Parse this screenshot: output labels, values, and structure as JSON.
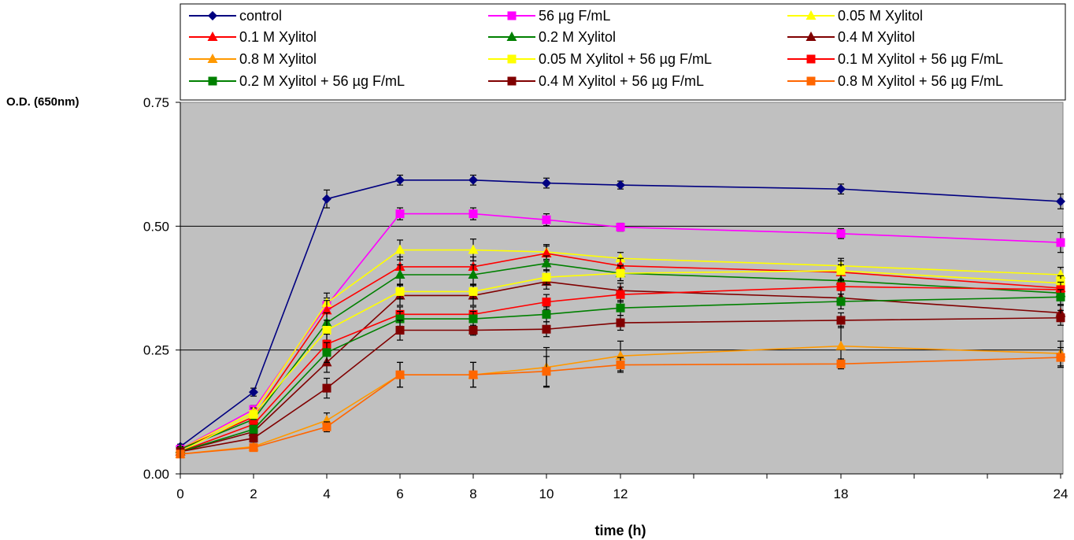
{
  "chart_data": {
    "type": "line",
    "xlabel": "time (h)",
    "ylabel": "O.D. (650nm)",
    "xlim": [
      0,
      24
    ],
    "ylim": [
      0,
      0.75
    ],
    "x_ticks": [
      0,
      2,
      4,
      6,
      8,
      10,
      12,
      18,
      24
    ],
    "x_minor_ticks": [
      14,
      16,
      20,
      22
    ],
    "y_ticks": [
      "0.00",
      "0.25",
      "0.50",
      "0.75"
    ],
    "y_tick_values": [
      0,
      0.25,
      0.5,
      0.75
    ],
    "grid": "horizontal",
    "legend_placement": "top",
    "plot_background": "#c0c0c0",
    "x": [
      0,
      2,
      4,
      6,
      8,
      10,
      12,
      18,
      24
    ],
    "series": [
      {
        "name": "control",
        "color": "#000080",
        "marker": "diamond",
        "values": [
          0.055,
          0.165,
          0.555,
          0.593,
          0.593,
          0.587,
          0.583,
          0.575,
          0.55
        ],
        "errors": [
          0.005,
          0.008,
          0.018,
          0.01,
          0.01,
          0.01,
          0.008,
          0.01,
          0.015
        ]
      },
      {
        "name": "56 µg F/mL",
        "color": "#ff00ff",
        "marker": "square",
        "values": [
          0.05,
          0.13,
          0.34,
          0.525,
          0.525,
          0.513,
          0.498,
          0.485,
          0.467
        ],
        "errors": [
          0.005,
          0.008,
          0.015,
          0.012,
          0.012,
          0.012,
          0.008,
          0.01,
          0.02
        ]
      },
      {
        "name": "0.05 M Xylitol",
        "color": "#ffff00",
        "marker": "triangle",
        "values": [
          0.05,
          0.125,
          0.345,
          0.452,
          0.452,
          0.448,
          0.435,
          0.42,
          0.402
        ],
        "errors": [
          0.005,
          0.008,
          0.02,
          0.02,
          0.022,
          0.015,
          0.012,
          0.015,
          0.015
        ]
      },
      {
        "name": "0.1 M Xylitol",
        "color": "#ff0000",
        "marker": "triangle",
        "values": [
          0.05,
          0.115,
          0.33,
          0.418,
          0.418,
          0.445,
          0.42,
          0.407,
          0.375
        ],
        "errors": [
          0.005,
          0.008,
          0.02,
          0.02,
          0.02,
          0.015,
          0.015,
          0.015,
          0.015
        ]
      },
      {
        "name": "0.2 M Xylitol",
        "color": "#008000",
        "marker": "triangle",
        "values": [
          0.05,
          0.11,
          0.305,
          0.402,
          0.402,
          0.425,
          0.405,
          0.39,
          0.365
        ],
        "errors": [
          0.005,
          0.008,
          0.02,
          0.02,
          0.02,
          0.015,
          0.015,
          0.015,
          0.015
        ]
      },
      {
        "name": "0.4 M Xylitol",
        "color": "#800000",
        "marker": "triangle",
        "values": [
          0.045,
          0.085,
          0.225,
          0.36,
          0.36,
          0.388,
          0.37,
          0.355,
          0.325
        ],
        "errors": [
          0.005,
          0.008,
          0.02,
          0.02,
          0.02,
          0.015,
          0.015,
          0.015,
          0.015
        ]
      },
      {
        "name": "0.8 M Xylitol",
        "color": "#ff9900",
        "marker": "triangle",
        "values": [
          0.04,
          0.055,
          0.108,
          0.2,
          0.2,
          0.215,
          0.238,
          0.258,
          0.243
        ],
        "errors": [
          0.005,
          0.005,
          0.015,
          0.025,
          0.025,
          0.04,
          0.03,
          0.04,
          0.025
        ]
      },
      {
        "name": "0.05 M Xylitol + 56 µg F/mL",
        "color": "#ffff00",
        "marker": "square",
        "values": [
          0.045,
          0.12,
          0.29,
          0.368,
          0.368,
          0.397,
          0.405,
          0.41,
          0.385
        ],
        "errors": [
          0.005,
          0.008,
          0.02,
          0.015,
          0.015,
          0.015,
          0.015,
          0.02,
          0.015
        ]
      },
      {
        "name": " 0.1 M Xylitol + 56 µg F/mL",
        "color": "#ff0000",
        "marker": "square",
        "values": [
          0.045,
          0.1,
          0.262,
          0.322,
          0.322,
          0.347,
          0.362,
          0.378,
          0.372
        ],
        "errors": [
          0.005,
          0.008,
          0.02,
          0.015,
          0.015,
          0.015,
          0.015,
          0.015,
          0.015
        ]
      },
      {
        "name": "0.2 M Xylitol + 56 µg F/mL",
        "color": "#008000",
        "marker": "square",
        "values": [
          0.045,
          0.09,
          0.245,
          0.313,
          0.313,
          0.322,
          0.335,
          0.348,
          0.357
        ],
        "errors": [
          0.005,
          0.008,
          0.02,
          0.015,
          0.015,
          0.015,
          0.015,
          0.015,
          0.015
        ]
      },
      {
        "name": "0.4 M Xylitol + 56 µg F/mL",
        "color": "#800000",
        "marker": "square",
        "values": [
          0.045,
          0.072,
          0.173,
          0.29,
          0.29,
          0.292,
          0.305,
          0.31,
          0.315
        ],
        "errors": [
          0.005,
          0.008,
          0.02,
          0.02,
          0.01,
          0.015,
          0.015,
          0.015,
          0.015
        ]
      },
      {
        "name": "0.8 M Xylitol + 56 µg F/mL",
        "color": "#ff6600",
        "marker": "square",
        "values": [
          0.04,
          0.053,
          0.095,
          0.2,
          0.2,
          0.207,
          0.22,
          0.222,
          0.235
        ],
        "errors": [
          0.005,
          0.005,
          0.01,
          0.025,
          0.025,
          0.03,
          0.015,
          0.01,
          0.02
        ]
      }
    ]
  }
}
